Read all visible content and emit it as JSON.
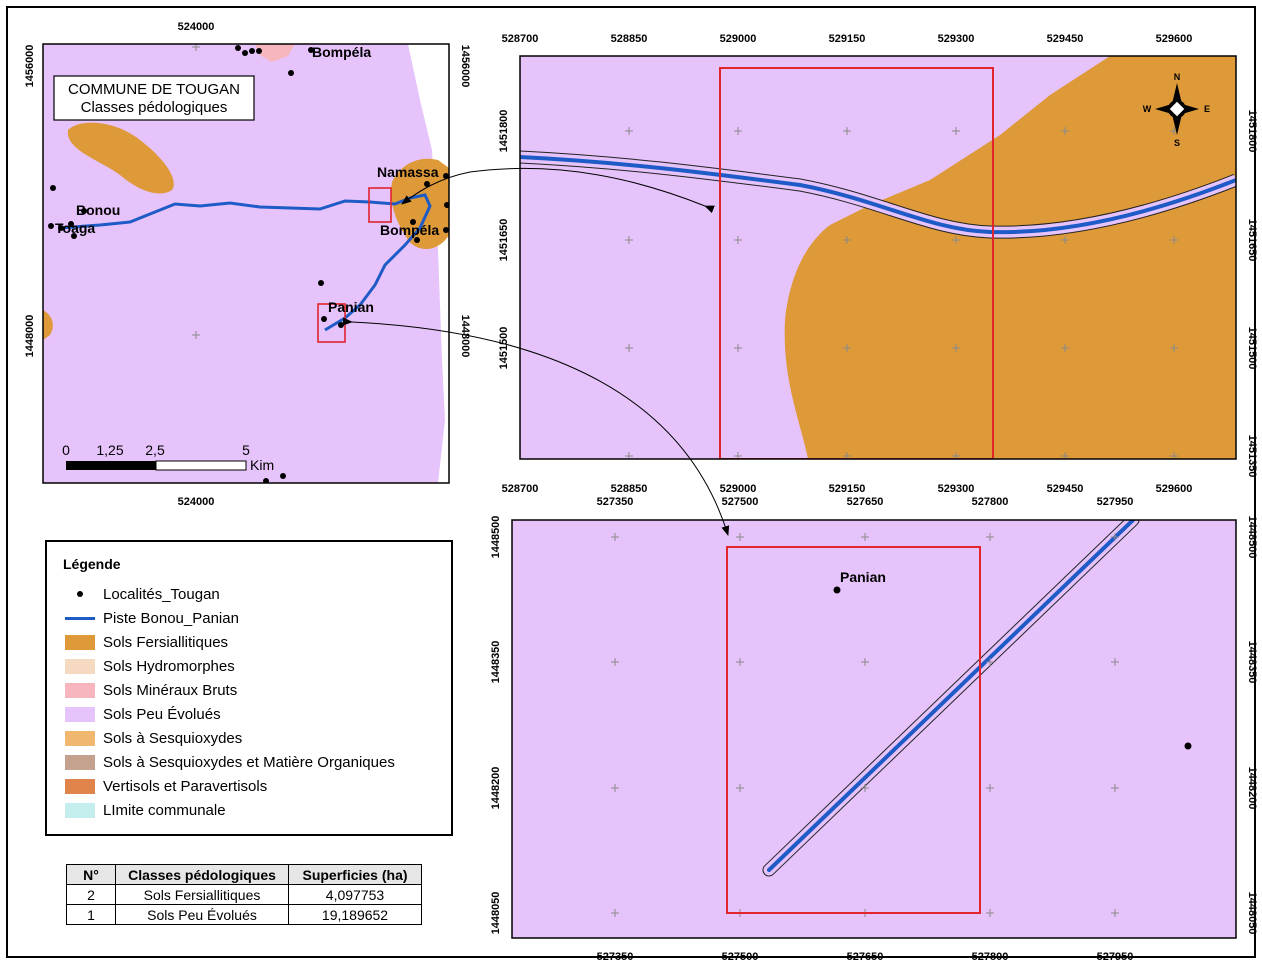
{
  "colors": {
    "peu_evolues": "#e6c3fb",
    "fersiallitiques": "#de9a39",
    "mineraux_bruts": "#f7b6bd",
    "hydromorphes": "#f6d9c1",
    "sesquioxydes": "#f0b86e",
    "sesquioxydes_mo": "#c5a290",
    "vertisols": "#e0844c",
    "limite": "#c4eeed",
    "piste": "#1e5bc6",
    "frame_red": "#e0262c"
  },
  "overview_map": {
    "title_line1": "COMMUNE DE TOUGAN",
    "title_line2": "Classes pédologiques",
    "x_ticks": [
      "524000",
      "524000"
    ],
    "y_ticks_left": [
      "1456000",
      "1448000"
    ],
    "y_ticks_right": [
      "1456000",
      "1448000"
    ],
    "places": [
      "Bompéla",
      "Namassa",
      "Bonou",
      "Toaga",
      "Bompéla",
      "Panian"
    ],
    "scalebar": {
      "labels": [
        "0",
        "1,25",
        "2,5",
        "5"
      ],
      "unit": "Kim"
    }
  },
  "zoom_top": {
    "x_ticks": [
      "528700",
      "528850",
      "529000",
      "529150",
      "529300",
      "529450",
      "529600"
    ],
    "y_ticks_left": [
      "1451800",
      "1451650",
      "1451500"
    ],
    "y_ticks_right": [
      "1451800",
      "1451650",
      "1451500",
      "1451350"
    ],
    "north_arrow": {
      "n": "N",
      "s": "S",
      "e": "E",
      "w": "W"
    }
  },
  "zoom_bottom": {
    "x_ticks": [
      "527350",
      "527500",
      "527650",
      "527800",
      "527950"
    ],
    "y_ticks_left": [
      "1448500",
      "1448350",
      "1448200",
      "1448050"
    ],
    "y_ticks_right": [
      "1448500",
      "1448350",
      "1448200",
      "1448050"
    ],
    "place": "Panian"
  },
  "legend": {
    "title": "Légende",
    "items": [
      {
        "label": "Localités_Tougan",
        "symbol": "dot"
      },
      {
        "label": "Piste Bonou_Panian",
        "symbol": "line"
      },
      {
        "label": "Sols Fersiallitiques",
        "color": "#de9a39"
      },
      {
        "label": "Sols Hydromorphes",
        "color": "#f6d9c1"
      },
      {
        "label": "Sols Minéraux Bruts",
        "color": "#f7b6bd"
      },
      {
        "label": "Sols Peu Évolués",
        "color": "#e6c3fb"
      },
      {
        "label": "Sols à Sesquioxydes",
        "color": "#f0b86e"
      },
      {
        "label": "Sols à Sesquioxydes et Matière Organiques",
        "color": "#c5a290"
      },
      {
        "label": "Vertisols et Paravertisols",
        "color": "#e0844c"
      },
      {
        "label": "LImite communale",
        "color": "#c4eeed"
      }
    ]
  },
  "table": {
    "headers": [
      "N°",
      "Classes pédologiques",
      "Superficies (ha)"
    ],
    "rows": [
      [
        "2",
        "Sols Fersiallitiques",
        "4,097753"
      ],
      [
        "1",
        "Sols Peu Évolués",
        "19,189652"
      ]
    ]
  }
}
